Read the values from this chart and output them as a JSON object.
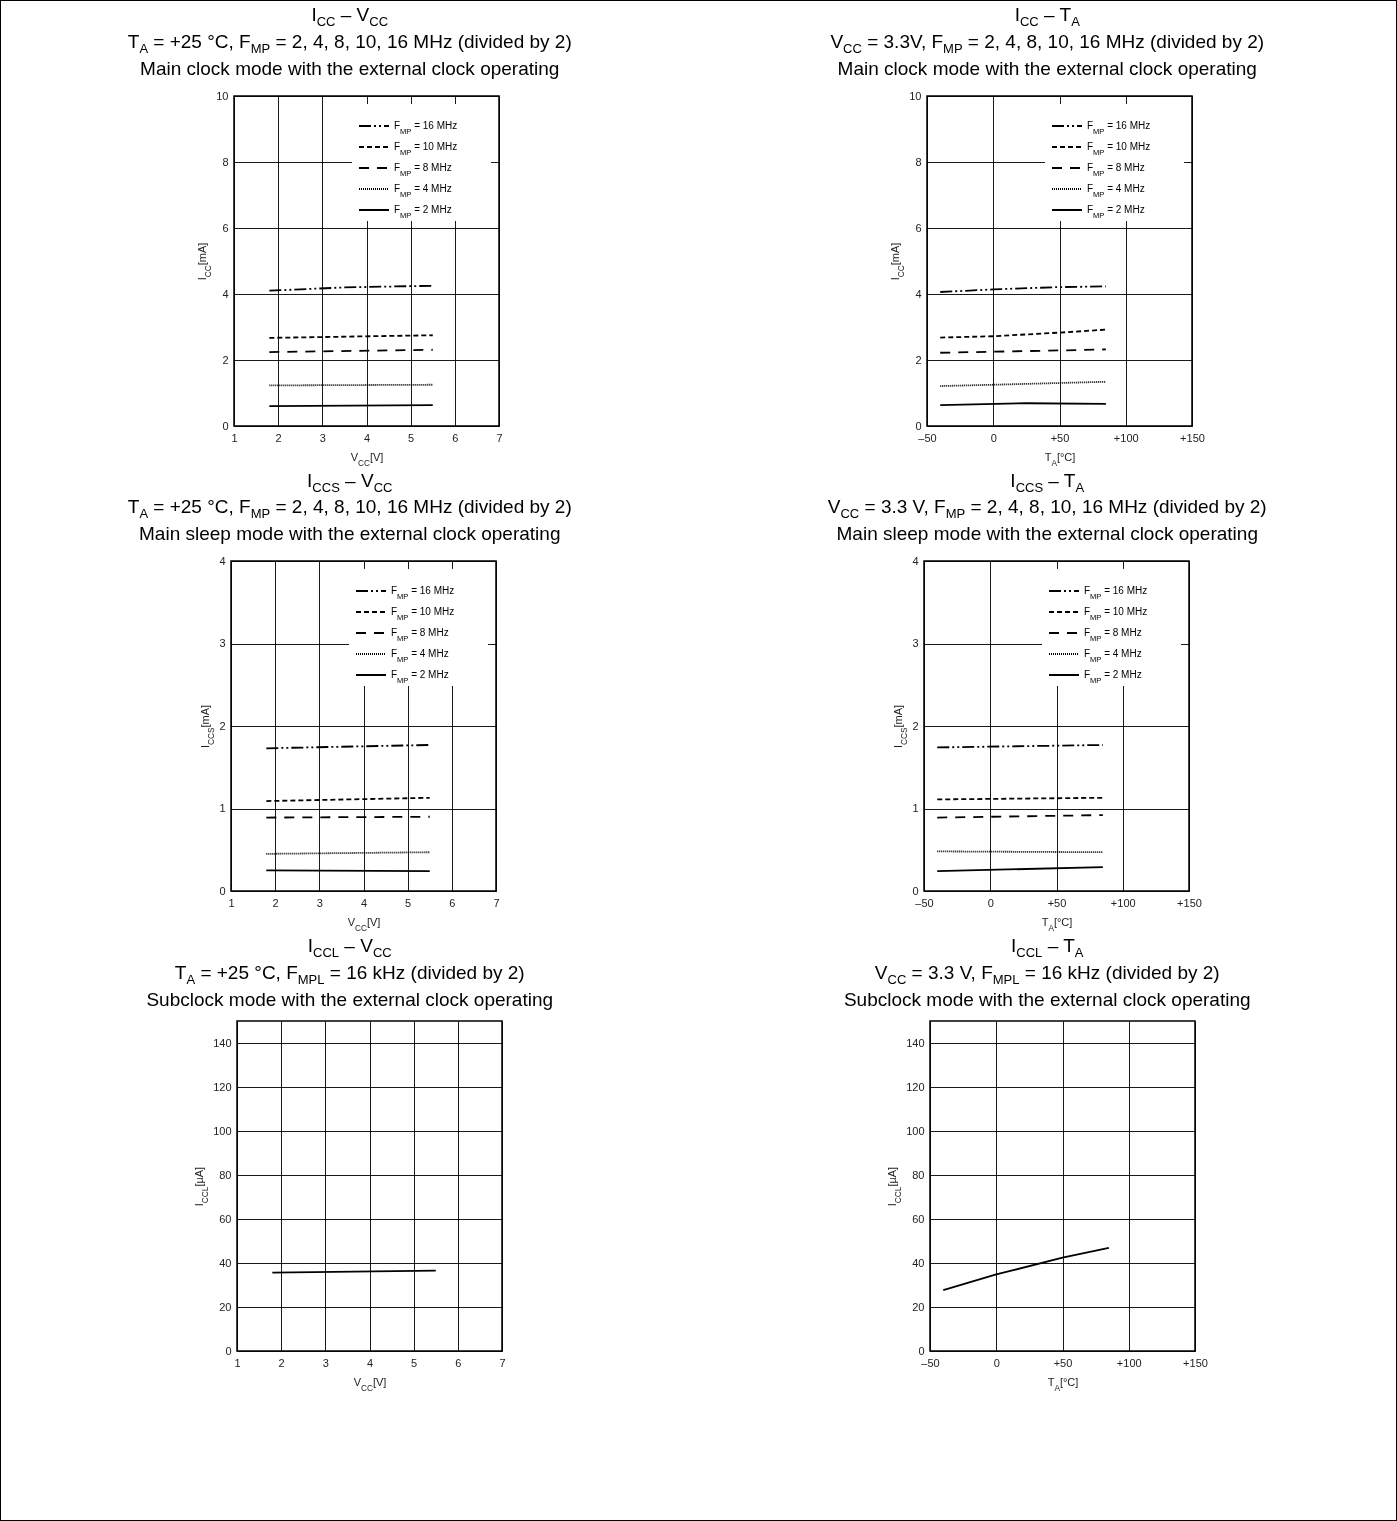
{
  "chart_data": [
    {
      "type": "line",
      "title": "I$_{CC}$ – V$_{CC}$",
      "subtitle": "T$_{A}$ = +25 °C, F$_{MP}$ = 2, 4, 8, 10, 16 MHz (divided by 2)\nMain clock mode with the external clock operating",
      "xlabel": "V$_{CC}$[V]",
      "ylabel": "I$_{CC}$[mA]",
      "xlim": [
        1,
        7
      ],
      "xticks": [
        1,
        2,
        3,
        4,
        5,
        6,
        7
      ],
      "ylim": [
        0,
        10
      ],
      "yticks": [
        0,
        2,
        4,
        6,
        8,
        10
      ],
      "grid": true,
      "legend": "top right",
      "series": [
        {
          "name": "F$_{MP}$ = 16 MHz",
          "color": "#000000",
          "line_style": "dashdotdot",
          "x": [
            1.8,
            3.5,
            5.5
          ],
          "values": [
            4.1,
            4.2,
            4.25
          ]
        },
        {
          "name": "F$_{MP}$ = 10 MHz",
          "color": "#000000",
          "line_style": "dashed",
          "x": [
            1.8,
            5.5
          ],
          "values": [
            2.67,
            2.75
          ]
        },
        {
          "name": "F$_{MP}$ = 8 MHz",
          "color": "#000000",
          "line_style": "longdashed",
          "x": [
            1.8,
            5.5
          ],
          "values": [
            2.24,
            2.31
          ]
        },
        {
          "name": "F$_{MP}$ = 4 MHz",
          "color": "#000000",
          "line_style": "dotted",
          "x": [
            1.8,
            5.5
          ],
          "values": [
            1.23,
            1.25
          ]
        },
        {
          "name": "F$_{MP}$ = 2 MHz",
          "color": "#000000",
          "line_style": "solid",
          "x": [
            1.8,
            5.5
          ],
          "values": [
            0.6,
            0.63
          ]
        }
      ]
    },
    {
      "type": "line",
      "title": "I$_{CC}$ – T$_{A}$",
      "subtitle": "V$_{CC}$ = 3.3V, F$_{MP}$ = 2, 4, 8, 10, 16 MHz (divided by 2)\nMain clock mode with the external clock operating",
      "xlabel": "T$_{A}$[°C]",
      "ylabel": "I$_{CC}$[mA]",
      "xlim": [
        -50,
        150
      ],
      "xticks": [
        {
          "value": -50,
          "label": "–50"
        },
        0,
        {
          "value": 50,
          "label": "+50"
        },
        {
          "value": 100,
          "label": "+100"
        },
        {
          "value": 150,
          "label": "+150"
        }
      ],
      "ylim": [
        0,
        10
      ],
      "yticks": [
        0,
        2,
        4,
        6,
        8,
        10
      ],
      "grid": true,
      "legend": "top right",
      "series": [
        {
          "name": "F$_{MP}$ = 16 MHz",
          "color": "#000000",
          "line_style": "dashdotdot",
          "x": [
            -40,
            0,
            50,
            85
          ],
          "values": [
            4.06,
            4.14,
            4.21,
            4.23
          ]
        },
        {
          "name": "F$_{MP}$ = 10 MHz",
          "color": "#000000",
          "line_style": "dashed",
          "x": [
            -40,
            0,
            50,
            85
          ],
          "values": [
            2.68,
            2.72,
            2.83,
            2.92
          ]
        },
        {
          "name": "F$_{MP}$ = 8 MHz",
          "color": "#000000",
          "line_style": "longdashed",
          "x": [
            -40,
            50,
            85
          ],
          "values": [
            2.22,
            2.29,
            2.32
          ]
        },
        {
          "name": "F$_{MP}$ = 4 MHz",
          "color": "#000000",
          "line_style": "dotted",
          "x": [
            -40,
            0,
            85
          ],
          "values": [
            1.21,
            1.25,
            1.34
          ]
        },
        {
          "name": "F$_{MP}$ = 2 MHz",
          "color": "#000000",
          "line_style": "solid",
          "x": [
            -40,
            25,
            85
          ],
          "values": [
            0.63,
            0.69,
            0.67
          ]
        }
      ]
    },
    {
      "type": "line",
      "title": "I$_{CCS}$ – V$_{CC}$",
      "subtitle": "T$_{A}$ = +25 °C, F$_{MP}$ = 2, 4, 8, 10, 16 MHz (divided by 2)\nMain sleep mode with the external clock operating",
      "xlabel": "V$_{CC}$[V]",
      "ylabel": "I$_{CCS}$[mA]",
      "xlim": [
        1,
        7
      ],
      "xticks": [
        1,
        2,
        3,
        4,
        5,
        6,
        7
      ],
      "ylim": [
        0,
        4
      ],
      "yticks": [
        0,
        1,
        2,
        3,
        4
      ],
      "grid": true,
      "legend": "top right",
      "series": [
        {
          "name": "F$_{MP}$ = 16 MHz",
          "color": "#000000",
          "line_style": "dashdotdot",
          "x": [
            1.8,
            5.5
          ],
          "values": [
            1.73,
            1.77
          ]
        },
        {
          "name": "F$_{MP}$ = 10 MHz",
          "color": "#000000",
          "line_style": "dashed",
          "x": [
            1.8,
            5.5
          ],
          "values": [
            1.09,
            1.13
          ]
        },
        {
          "name": "F$_{MP}$ = 8 MHz",
          "color": "#000000",
          "line_style": "longdashed",
          "x": [
            1.8,
            5.5
          ],
          "values": [
            0.89,
            0.9
          ]
        },
        {
          "name": "F$_{MP}$ = 4 MHz",
          "color": "#000000",
          "line_style": "dotted",
          "x": [
            1.8,
            5.5
          ],
          "values": [
            0.45,
            0.47
          ]
        },
        {
          "name": "F$_{MP}$ = 2 MHz",
          "color": "#000000",
          "line_style": "solid",
          "x": [
            1.8,
            5.5
          ],
          "values": [
            0.25,
            0.24
          ]
        }
      ]
    },
    {
      "type": "line",
      "title": "I$_{CCS}$ – T$_{A}$",
      "subtitle": "V$_{CC}$ = 3.3 V, F$_{MP}$ = 2, 4, 8, 10, 16 MHz (divided by 2)\nMain sleep mode with the external clock operating",
      "xlabel": "T$_{A}$[°C]",
      "ylabel": "I$_{CCS}$[mA]",
      "xlim": [
        -50,
        150
      ],
      "xticks": [
        {
          "value": -50,
          "label": "–50"
        },
        0,
        {
          "value": 50,
          "label": "+50"
        },
        {
          "value": 100,
          "label": "+100"
        },
        {
          "value": 150,
          "label": "+150"
        }
      ],
      "ylim": [
        0,
        4
      ],
      "yticks": [
        0,
        1,
        2,
        3,
        4
      ],
      "grid": true,
      "legend": "top right",
      "series": [
        {
          "name": "F$_{MP}$ = 16 MHz",
          "color": "#000000",
          "line_style": "dashdotdot",
          "x": [
            -40,
            85
          ],
          "values": [
            1.74,
            1.77
          ]
        },
        {
          "name": "F$_{MP}$ = 10 MHz",
          "color": "#000000",
          "line_style": "dashed",
          "x": [
            -40,
            85
          ],
          "values": [
            1.11,
            1.13
          ]
        },
        {
          "name": "F$_{MP}$ = 8 MHz",
          "color": "#000000",
          "line_style": "longdashed",
          "x": [
            -40,
            85
          ],
          "values": [
            0.89,
            0.92
          ]
        },
        {
          "name": "F$_{MP}$ = 4 MHz",
          "color": "#000000",
          "line_style": "dotted",
          "x": [
            -40,
            85
          ],
          "values": [
            0.48,
            0.47
          ]
        },
        {
          "name": "F$_{MP}$ = 2 MHz",
          "color": "#000000",
          "line_style": "solid",
          "x": [
            -40,
            85
          ],
          "values": [
            0.24,
            0.29
          ]
        }
      ]
    },
    {
      "type": "line",
      "title": "I$_{CCL}$ – V$_{CC}$",
      "subtitle": "T$_{A}$ = +25 °C, F$_{MPL}$ = 16 kHz (divided by 2)\nSubclock mode with the external clock operating",
      "xlabel": "V$_{CC}$[V]",
      "ylabel": "I$_{CCL}$[µA]",
      "xlim": [
        1,
        7
      ],
      "xticks": [
        1,
        2,
        3,
        4,
        5,
        6,
        7
      ],
      "ylim": [
        0,
        150
      ],
      "yticks": [
        0,
        20,
        40,
        60,
        80,
        100,
        120,
        140
      ],
      "grid": true,
      "series": [
        {
          "color": "#000000",
          "line_style": "solid",
          "x": [
            1.8,
            5.5
          ],
          "values": [
            35.6,
            36.5
          ]
        }
      ]
    },
    {
      "type": "line",
      "title": "I$_{CCL}$ – T$_{A}$",
      "subtitle": "V$_{CC}$ = 3.3 V, F$_{MPL}$ = 16 kHz (divided by 2)\nSubclock mode with the external clock operating",
      "xlabel": "T$_{A}$[°C]",
      "ylabel": "I$_{CCL}$[µA]",
      "xlim": [
        -50,
        150
      ],
      "xticks": [
        {
          "value": -50,
          "label": "–50"
        },
        0,
        {
          "value": 50,
          "label": "+50"
        },
        {
          "value": 100,
          "label": "+100"
        },
        {
          "value": 150,
          "label": "+150"
        }
      ],
      "ylim": [
        0,
        150
      ],
      "yticks": [
        0,
        20,
        40,
        60,
        80,
        100,
        120,
        140
      ],
      "grid": true,
      "series": [
        {
          "color": "#000000",
          "line_style": "solid",
          "x": [
            -40,
            0,
            50,
            85
          ],
          "values": [
            27.7,
            34.8,
            42.4,
            46.9
          ]
        }
      ]
    }
  ]
}
